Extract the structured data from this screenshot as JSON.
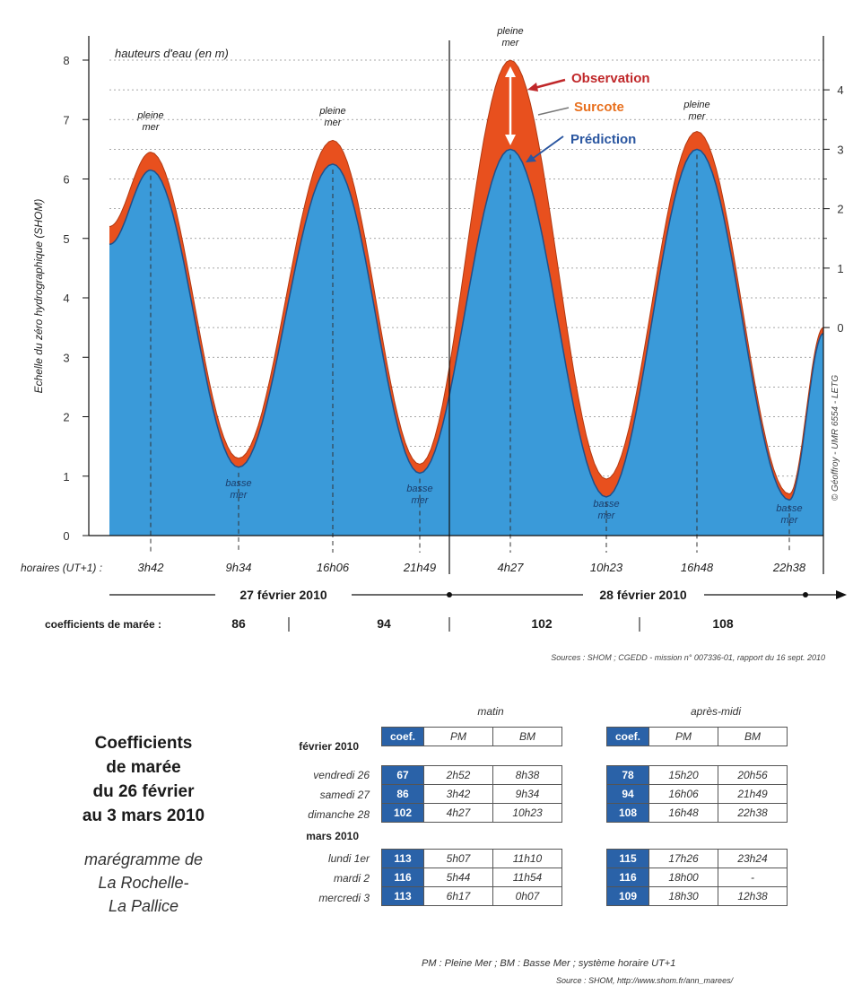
{
  "chart_data": {
    "type": "area",
    "title": "hauteurs d'eau (en m)",
    "ylabel": "Echelle du zéro hydrographique (SHOM)",
    "ylim": [
      0,
      8.4
    ],
    "y_ticks": [
      "0",
      "1",
      "2",
      "3",
      "4",
      "5",
      "6",
      "7",
      "8"
    ],
    "right_ticks": [
      "0",
      "1",
      "2",
      "3",
      "4"
    ],
    "right_note": "© Géoffroy - UMR 6554 - LETG",
    "x_label_prefix": "horaires (UT+1) :",
    "series": [
      {
        "name": "Observation",
        "color": "#e8501e",
        "extrema": [
          5.2,
          6.45,
          1.3,
          6.65,
          1.2,
          8.0,
          0.95,
          6.8,
          0.7,
          3.5
        ]
      },
      {
        "name": "Surcote",
        "color": "#e8501e"
      },
      {
        "name": "Prédiction",
        "color": "#3a9ad9",
        "extrema": [
          4.9,
          6.15,
          1.15,
          6.25,
          1.05,
          6.5,
          0.65,
          6.5,
          0.6,
          3.4
        ]
      }
    ],
    "events": [
      {
        "time": "3h42",
        "type": "pleine mer"
      },
      {
        "time": "9h34",
        "type": "basse mer"
      },
      {
        "time": "16h06",
        "type": "pleine mer"
      },
      {
        "time": "21h49",
        "type": "basse mer"
      },
      {
        "time": "4h27",
        "type": "pleine mer"
      },
      {
        "time": "10h23",
        "type": "basse mer"
      },
      {
        "time": "16h48",
        "type": "pleine mer"
      },
      {
        "time": "22h38",
        "type": "basse mer"
      }
    ],
    "labels": {
      "pleine": "pleine",
      "mer": "mer",
      "basse": "basse",
      "observation": "Observation",
      "surcote": "Surcote",
      "prediction": "Prédiction"
    },
    "dates": [
      "27 février 2010",
      "28 février 2010"
    ],
    "coef_label": "coefficients de marée :",
    "coefs": [
      "86",
      "94",
      "102",
      "108"
    ],
    "source": "Sources : SHOM ; CGEDD - mission n° 007336-01, rapport du 16 sept. 2010"
  },
  "legend_colors": {
    "observation": "#e8501e",
    "prediction": "#3a9ad9",
    "arrow": "#c0282a"
  },
  "table": {
    "left_title": [
      "Coefficients",
      "de marée",
      "du 26 février",
      "au 3 mars 2010"
    ],
    "left_sub": [
      "marégramme de",
      "La Rochelle-",
      "La Pallice"
    ],
    "matin": "matin",
    "apres_midi": "après-midi",
    "headers": [
      "coef.",
      "PM",
      "BM"
    ],
    "sections": [
      {
        "label": "février 2010",
        "rows": [
          {
            "day": "vendredi 26",
            "am": [
              "67",
              "2h52",
              "8h38"
            ],
            "pm": [
              "78",
              "15h20",
              "20h56"
            ]
          },
          {
            "day": "samedi 27",
            "am": [
              "86",
              "3h42",
              "9h34"
            ],
            "pm": [
              "94",
              "16h06",
              "21h49"
            ]
          },
          {
            "day": "dimanche 28",
            "am": [
              "102",
              "4h27",
              "10h23"
            ],
            "pm": [
              "108",
              "16h48",
              "22h38"
            ]
          }
        ]
      },
      {
        "label": "mars 2010",
        "rows": [
          {
            "day": "lundi 1er",
            "am": [
              "113",
              "5h07",
              "11h10"
            ],
            "pm": [
              "115",
              "17h26",
              "23h24"
            ]
          },
          {
            "day": "mardi 2",
            "am": [
              "116",
              "5h44",
              "11h54"
            ],
            "pm": [
              "116",
              "18h00",
              "-"
            ]
          },
          {
            "day": "mercredi 3",
            "am": [
              "113",
              "6h17",
              "0h07"
            ],
            "pm": [
              "109",
              "18h30",
              "12h38"
            ]
          }
        ]
      }
    ],
    "footnote": "PM : Pleine Mer ; BM : Basse Mer ; système horaire UT+1",
    "source": "Source : SHOM, http://www.shom.fr/ann_marees/"
  }
}
